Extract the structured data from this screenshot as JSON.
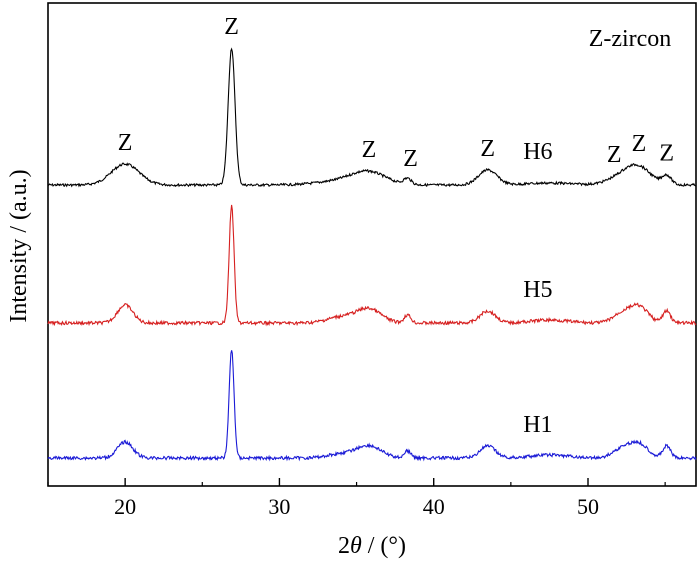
{
  "chart_data": {
    "type": "line",
    "xlabel_prefix": "2",
    "xlabel_theta": "θ",
    "xlabel_suffix": " / (°)",
    "ylabel": "Intensity / (a.u.)",
    "xlim": [
      15,
      57
    ],
    "xticks": [
      20,
      30,
      40,
      50
    ],
    "y_ticks_shown": false,
    "legend_note": "Z-zircon",
    "series": [
      {
        "name": "H6",
        "color": "#000000",
        "baseline": 185,
        "noise": 1.2,
        "peaks": [
          [
            20.0,
            21,
            0.9
          ],
          [
            26.9,
            137,
            0.22
          ],
          [
            34.0,
            4,
            1.5
          ],
          [
            35.8,
            12,
            1.1
          ],
          [
            38.3,
            6,
            0.25
          ],
          [
            43.5,
            15,
            0.6
          ],
          [
            47.5,
            2,
            1.5
          ],
          [
            52.2,
            8,
            0.9
          ],
          [
            53.3,
            16,
            0.8
          ],
          [
            55.1,
            9,
            0.3
          ]
        ]
      },
      {
        "name": "H5",
        "color": "#d62020",
        "baseline": 323,
        "noise": 1.6,
        "peaks": [
          [
            20.0,
            18,
            0.5
          ],
          [
            26.9,
            117,
            0.16
          ],
          [
            34.0,
            6,
            0.9
          ],
          [
            35.8,
            14,
            0.8
          ],
          [
            38.3,
            8,
            0.22
          ],
          [
            43.5,
            12,
            0.5
          ],
          [
            47.5,
            3,
            1.2
          ],
          [
            52.2,
            9,
            0.6
          ],
          [
            53.3,
            16,
            0.6
          ],
          [
            55.1,
            12,
            0.25
          ]
        ]
      },
      {
        "name": "H1",
        "color": "#1a1ad6",
        "baseline": 458,
        "noise": 1.6,
        "peaks": [
          [
            20.0,
            16,
            0.5
          ],
          [
            26.9,
            108,
            0.16
          ],
          [
            34.0,
            4,
            0.9
          ],
          [
            35.8,
            12,
            0.8
          ],
          [
            38.3,
            7,
            0.22
          ],
          [
            43.5,
            12,
            0.5
          ],
          [
            47.5,
            3,
            1.2
          ],
          [
            52.2,
            9,
            0.6
          ],
          [
            53.3,
            14,
            0.6
          ],
          [
            55.1,
            12,
            0.25
          ]
        ]
      }
    ],
    "annotations": [
      {
        "text": "Z",
        "x": 20.0
      },
      {
        "text": "Z",
        "x": 26.9
      },
      {
        "text": "Z",
        "x": 35.8
      },
      {
        "text": "Z",
        "x": 38.5
      },
      {
        "text": "Z",
        "x": 43.5
      },
      {
        "text": "Z",
        "x": 51.7
      },
      {
        "text": "Z",
        "x": 53.3
      },
      {
        "text": "Z",
        "x": 55.1
      }
    ]
  }
}
